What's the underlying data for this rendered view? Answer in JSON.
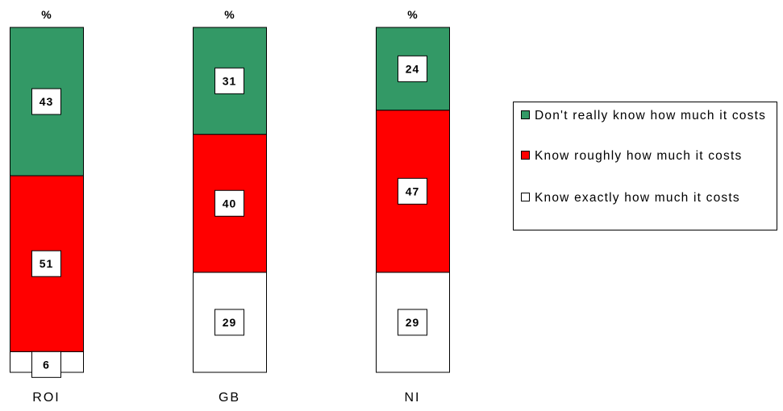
{
  "chart_data": {
    "type": "bar",
    "stacked": true,
    "normalized": true,
    "categories": [
      "ROI",
      "GB",
      "NI"
    ],
    "unit_label": "%",
    "series": [
      {
        "name": "Know exactly how much it costs",
        "color": "#ffffff",
        "values": [
          6,
          29,
          29
        ]
      },
      {
        "name": "Know roughly how much it costs",
        "color": "#ff0000",
        "values": [
          51,
          40,
          47
        ]
      },
      {
        "name": "Don't really know how much it costs",
        "color": "#339966",
        "values": [
          43,
          31,
          24
        ]
      }
    ],
    "ylim": [
      0,
      100
    ],
    "grid": false,
    "legend_position": "right"
  },
  "legend": {
    "items": [
      {
        "label": "Don't really know how much it costs",
        "color": "#339966",
        "icon": "green-square-icon"
      },
      {
        "label": "Know roughly how much it costs",
        "color": "#ff0000",
        "icon": "red-square-icon"
      },
      {
        "label": "Know exactly how much it costs",
        "color": "#ffffff",
        "icon": "white-square-icon"
      }
    ]
  }
}
